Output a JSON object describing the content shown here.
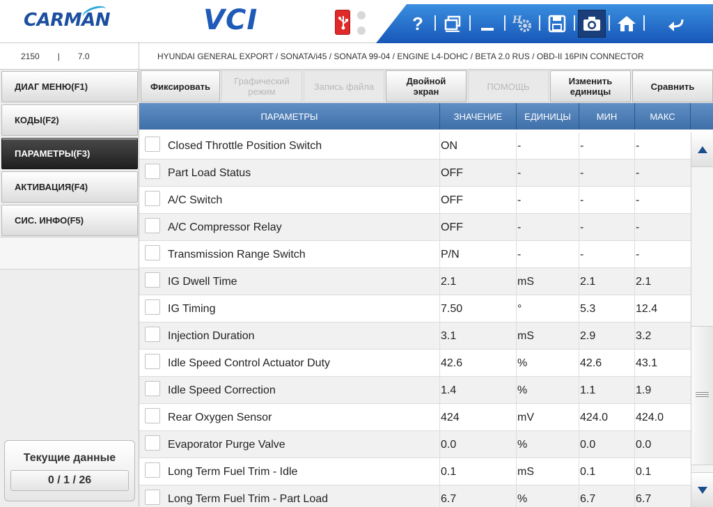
{
  "header": {
    "logo": "CARMAN",
    "product": "VCI",
    "toolbar": {
      "help_icon": "?",
      "icons": [
        "help-icon",
        "window-icon",
        "minimize-icon",
        "settings-icon",
        "save-icon",
        "camera-icon",
        "home-icon",
        "back-icon"
      ]
    }
  },
  "infobar": {
    "left_value_1": "2150",
    "left_separator": "|",
    "left_value_2": "7.0",
    "vehicle_path": "HYUNDAI GENERAL EXPORT / SONATA/i45 / SONATA 99-04 / ENGINE L4-DOHC / BETA 2.0 RUS / OBD-II 16PIN CONNECTOR"
  },
  "sidebar": {
    "items": [
      {
        "label": "ДИАГ МЕНЮ(F1)"
      },
      {
        "label": "КОДЫ(F2)"
      },
      {
        "label": "ПАРАМЕТРЫ(F3)"
      },
      {
        "label": "АКТИВАЦИЯ(F4)"
      },
      {
        "label": "СИС. ИНФО(F5)"
      }
    ],
    "current_data_label": "Текущие данные",
    "current_data_count": "0 / 1 / 26"
  },
  "function_buttons": {
    "freeze": "Фиксировать",
    "graph_line1": "Графический",
    "graph_line2": "режим",
    "record": "Запись файла",
    "dual_line1": "Двойной",
    "dual_line2": "экран",
    "help": "ПОМОЩЬ",
    "units_line1": "Изменить",
    "units_line2": "единицы",
    "compare": "Сравнить"
  },
  "table": {
    "columns": {
      "params": "ПАРАМЕТРЫ",
      "value": "ЗНАЧЕНИЕ",
      "units": "ЕДИНИЦЫ",
      "min": "МИН",
      "max": "МАКС"
    },
    "rows": [
      {
        "name": "Closed Throttle Position Switch",
        "value": "ON",
        "unit": "-",
        "min": "-",
        "max": "-"
      },
      {
        "name": "Part Load Status",
        "value": "OFF",
        "unit": "-",
        "min": "-",
        "max": "-"
      },
      {
        "name": "A/C Switch",
        "value": "OFF",
        "unit": "-",
        "min": "-",
        "max": "-"
      },
      {
        "name": "A/C Compressor Relay",
        "value": "OFF",
        "unit": "-",
        "min": "-",
        "max": "-"
      },
      {
        "name": "Transmission Range Switch",
        "value": "P/N",
        "unit": "-",
        "min": "-",
        "max": "-"
      },
      {
        "name": "IG Dwell Time",
        "value": "2.1",
        "unit": "mS",
        "min": "2.1",
        "max": "2.1"
      },
      {
        "name": "IG Timing",
        "value": "7.50",
        "unit": "°",
        "min": "5.3",
        "max": "12.4"
      },
      {
        "name": "Injection Duration",
        "value": "3.1",
        "unit": "mS",
        "min": "2.9",
        "max": "3.2"
      },
      {
        "name": "Idle Speed Control Actuator Duty",
        "value": "42.6",
        "unit": "%",
        "min": "42.6",
        "max": "43.1"
      },
      {
        "name": "Idle Speed Correction",
        "value": "1.4",
        "unit": "%",
        "min": "1.1",
        "max": "1.9"
      },
      {
        "name": "Rear Oxygen Sensor",
        "value": "424",
        "unit": "mV",
        "min": "424.0",
        "max": "424.0"
      },
      {
        "name": "Evaporator Purge Valve",
        "value": "0.0",
        "unit": "%",
        "min": "0.0",
        "max": "0.0"
      },
      {
        "name": "Long Term Fuel Trim - Idle",
        "value": "0.1",
        "unit": "mS",
        "min": "0.1",
        "max": "0.1"
      },
      {
        "name": "Long Term Fuel Trim - Part Load",
        "value": "6.7",
        "unit": "%",
        "min": "6.7",
        "max": "6.7"
      }
    ]
  },
  "colors": {
    "brand_blue": "#1c4fa0",
    "toolbar_blue": "#2a73cf",
    "table_header": "#4f7fb8",
    "active_sidebar": "#2a2a2a"
  }
}
